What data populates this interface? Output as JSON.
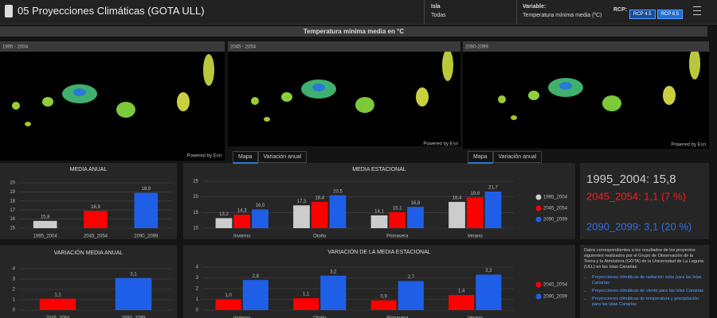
{
  "header": {
    "title": "05 Proyecciones Climáticas (GOTA ULL)",
    "isla_label": "Isla",
    "isla_value": "Todas",
    "variable_label": "Variable:",
    "variable_value": "Temperatura mínima media (ºC)",
    "rcp_label": "RCP:",
    "rcp_buttons": [
      "RCP 4.5",
      "RCP 8.5"
    ]
  },
  "map_title": "Temperatura mínima media en °C",
  "maps": [
    {
      "period": "1995 - 2004",
      "credit": "Powered by Esri"
    },
    {
      "period": "2045 - 2054",
      "credit": "Powered by Esri",
      "tabs": [
        "Mapa",
        "Variación anual"
      ]
    },
    {
      "period": "2090-2099",
      "credit": "Powered by Esri",
      "tabs": [
        "Mapa",
        "Variación anual"
      ]
    }
  ],
  "chart_data": [
    {
      "type": "bar",
      "title": "MEDIA ANUAL",
      "categories": [
        "1995_2004",
        "2045_2054",
        "2090_2099"
      ],
      "values": [
        15.8,
        16.9,
        18.9
      ],
      "value_labels": [
        "15,8",
        "16,9",
        "18,9"
      ],
      "colors": [
        "#cccccc",
        "#ff0000",
        "#1f5fe8"
      ],
      "ylim": [
        15,
        20
      ],
      "yticks": [
        15,
        16,
        17,
        18,
        19,
        20
      ],
      "grid": true
    },
    {
      "type": "bar",
      "title": "MEDIA ESTACIONAL",
      "categories": [
        "Invierno",
        "Otoño",
        "Primavera",
        "Verano"
      ],
      "series": [
        {
          "name": "1995_2004",
          "color": "#cccccc",
          "values": [
            13.2,
            17.3,
            14.1,
            18.4
          ],
          "value_labels": [
            "13,2",
            "17,3",
            "14,1",
            "18,4"
          ]
        },
        {
          "name": "2045_2054",
          "color": "#ff0000",
          "values": [
            14.3,
            18.4,
            15.1,
            19.8
          ],
          "value_labels": [
            "14,3",
            "18,4",
            "15,1",
            "19,8"
          ]
        },
        {
          "name": "2090_2099",
          "color": "#1f5fe8",
          "values": [
            16.0,
            20.5,
            16.8,
            21.7
          ],
          "value_labels": [
            "16,0",
            "20,5",
            "16,8",
            "21,7"
          ]
        }
      ],
      "ylim": [
        10,
        25
      ],
      "yticks": [
        10,
        15,
        20,
        25
      ],
      "grid": true,
      "legend": "right"
    },
    {
      "type": "bar",
      "title": "VARIACIÓN MEDIA ANUAL",
      "categories": [
        "2045_2054",
        "2090_2099"
      ],
      "values": [
        1.1,
        3.1
      ],
      "value_labels": [
        "1,1",
        "3,1"
      ],
      "colors": [
        "#ff0000",
        "#1f5fe8"
      ],
      "ylim": [
        0,
        4
      ],
      "yticks": [
        0,
        1,
        2,
        3,
        4
      ],
      "grid": true
    },
    {
      "type": "bar",
      "title": "VARIACIÓN DE LA MEDIA ESTACIONAL",
      "categories": [
        "Invierno",
        "Otoño",
        "Primavera",
        "Verano"
      ],
      "series": [
        {
          "name": "2045_2054",
          "color": "#ff0000",
          "values": [
            1.0,
            1.1,
            0.9,
            1.4
          ],
          "value_labels": [
            "1,0",
            "1,1",
            "0,9",
            "1,4"
          ]
        },
        {
          "name": "2090_2099",
          "color": "#1f5fe8",
          "values": [
            2.8,
            3.2,
            2.7,
            3.3
          ],
          "value_labels": [
            "2,8",
            "3,2",
            "2,7",
            "3,3"
          ]
        }
      ],
      "ylim": [
        0,
        4
      ],
      "yticks": [
        0,
        1,
        2,
        3,
        4
      ],
      "grid": true,
      "legend": "right"
    }
  ],
  "summary": {
    "lines": [
      "1995_2004: 15,8",
      "2045_2054: 1,1 (7 %)",
      "2090_2099: 3,1 (20 %)"
    ]
  },
  "info": {
    "text": "Datos correspondientes a los resultados de los proyectos siguientes realizados por el Grupo de Observación de la Tierra y la Atmósfera (GOTA) de la Universidad de La Laguna (ULL) en las Islas Canarias:",
    "links": [
      "Proyecciones climáticas de radiación solar para las Islas Canarias",
      "Proyecciones climáticas de viento para las Islas Canarias",
      "Proyecciones climáticas de temperatura y precipitación para las Islas Canarias"
    ]
  }
}
